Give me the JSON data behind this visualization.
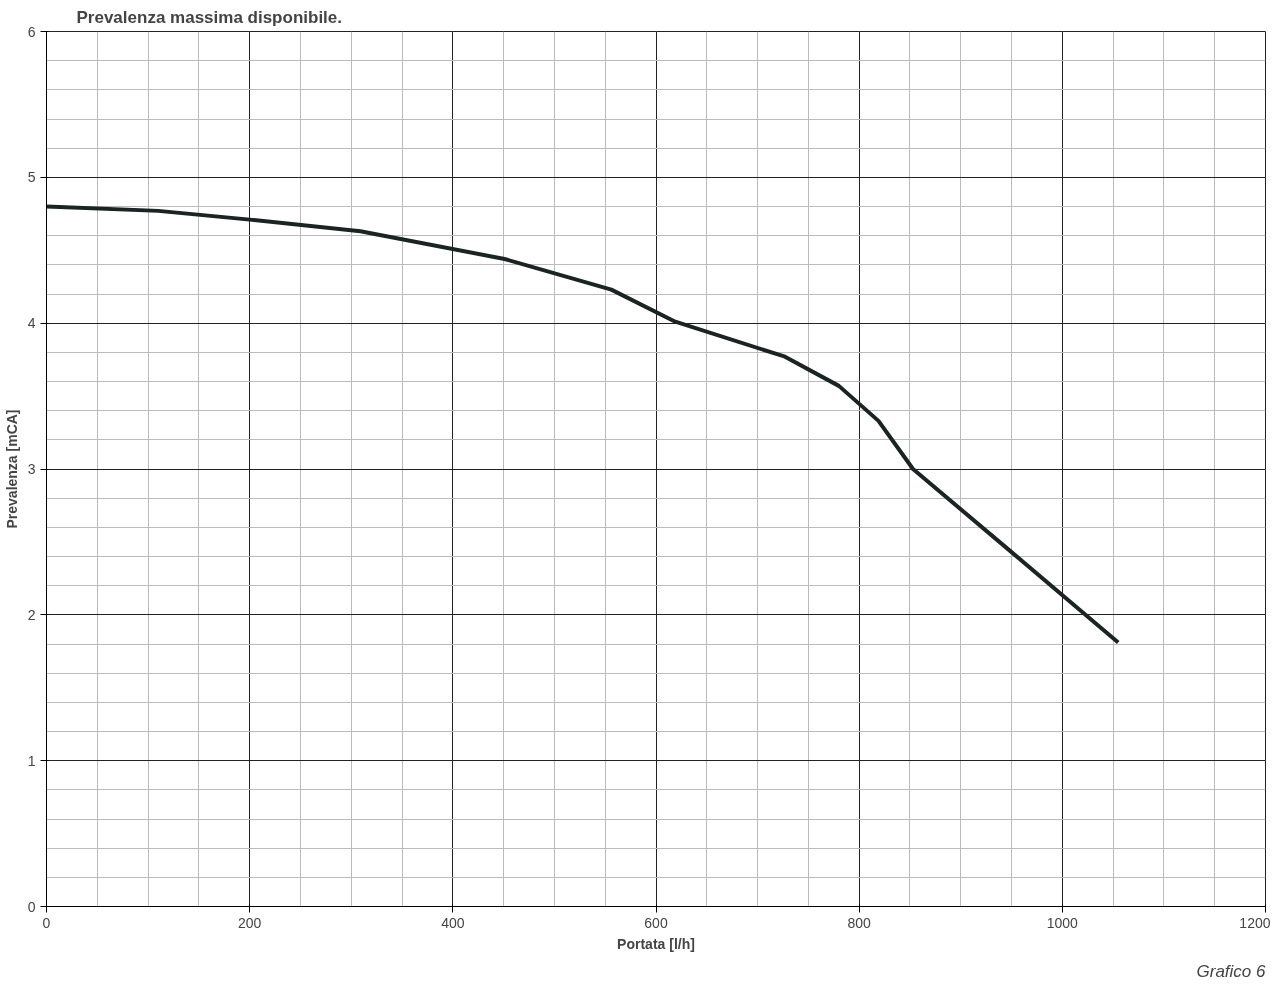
{
  "chart_data": {
    "type": "line",
    "title": "Prevalenza massima disponibile.",
    "xlabel": "Portata [l/h]",
    "ylabel": "Prevalenza [mCA]",
    "annotations": [
      "Grafico 6"
    ],
    "x": [
      0,
      110,
      200,
      309,
      451,
      556,
      619,
      727,
      780,
      819,
      853,
      950,
      1055
    ],
    "series": [
      {
        "color": "#1a2422",
        "values": [
          4.8,
          4.77,
          4.71,
          4.63,
          4.44,
          4.23,
          4.01,
          3.77,
          3.57,
          3.33,
          3.0,
          2.43,
          1.81
        ]
      }
    ],
    "xlim": [
      0,
      1200
    ],
    "ylim": [
      0,
      6
    ],
    "xticks": [
      0,
      200,
      400,
      600,
      800,
      1000,
      1200
    ],
    "yticks": [
      0,
      1,
      2,
      3,
      4,
      5,
      6
    ],
    "grid": true,
    "marker": "none",
    "line_style": "solid"
  }
}
